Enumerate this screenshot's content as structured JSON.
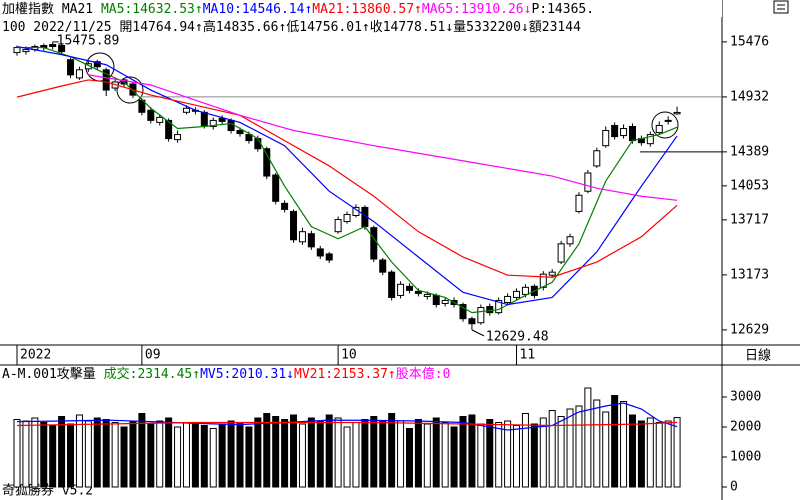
{
  "header": {
    "line1": [
      {
        "text": "加權指數 MA21 ",
        "color": "#000000"
      },
      {
        "text": "MA5:14632.53↑",
        "color": "#008000"
      },
      {
        "text": "MA10:14546.14↑",
        "color": "#0000ff"
      },
      {
        "text": "MA21:13860.57↑",
        "color": "#ff0000"
      },
      {
        "text": "MA65:13910.26↓",
        "color": "#ff00ff"
      },
      {
        "text": "P:14365.",
        "color": "#000000"
      }
    ],
    "line2": [
      {
        "text": "100 2022/11/25 開14764.94↑高14835.66↑低14756.01↑收14778.51↓量5332200↓額23144",
        "color": "#000000"
      }
    ],
    "volume_line": [
      {
        "text": "A-M.001攻擊量 ",
        "color": "#000000"
      },
      {
        "text": "成交:2314.45↑",
        "color": "#008000"
      },
      {
        "text": "MV5:2010.31↓",
        "color": "#0000ff"
      },
      {
        "text": "MV21:2153.37↑",
        "color": "#ff0000"
      },
      {
        "text": "股本億:0",
        "color": "#ff00ff"
      }
    ],
    "period": "日線",
    "footer": "奇狐勝券 v5.2"
  },
  "chart_data": [
    {
      "type": "candlestick",
      "categories": [
        "2022",
        null,
        null,
        null,
        null,
        null,
        null,
        null,
        null,
        null,
        null,
        null,
        null,
        null,
        "09",
        null,
        null,
        null,
        null,
        null,
        null,
        null,
        null,
        null,
        null,
        null,
        null,
        null,
        null,
        null,
        null,
        null,
        null,
        null,
        null,
        null,
        "10",
        null,
        null,
        null,
        null,
        null,
        null,
        null,
        null,
        null,
        null,
        null,
        null,
        null,
        null,
        null,
        null,
        null,
        null,
        null,
        "11",
        null,
        null,
        null,
        null,
        null,
        null,
        null,
        null,
        null,
        null,
        null,
        null,
        null,
        null,
        null,
        null,
        null,
        null
      ],
      "open": [
        15370,
        15380,
        15400,
        15440,
        15450,
        15440,
        15300,
        15120,
        15210,
        15280,
        15200,
        15020,
        15100,
        15060,
        14900,
        14800,
        14680,
        14700,
        14510,
        14780,
        14800,
        14780,
        14640,
        14720,
        14700,
        14600,
        14560,
        14520,
        14420,
        14160,
        13880,
        13800,
        13500,
        13580,
        13430,
        13380,
        13600,
        13700,
        13760,
        13840,
        13640,
        13320,
        13200,
        12970,
        13060,
        13010,
        12960,
        12970,
        12890,
        12920,
        12880,
        12740,
        12700,
        12860,
        12800,
        12900,
        12950,
        12980,
        13060,
        13050,
        13170,
        13300,
        13480,
        13800,
        14000,
        14250,
        14450,
        14650,
        14550,
        14640,
        14520,
        14470,
        14580,
        14690,
        14764.94
      ],
      "high": [
        15440,
        15430,
        15450,
        15460,
        15475.89,
        15460,
        15320,
        15230,
        15290,
        15300,
        15220,
        15110,
        15120,
        15080,
        14920,
        14830,
        14760,
        14720,
        14600,
        14850,
        14830,
        14800,
        14730,
        14750,
        14720,
        14630,
        14590,
        14550,
        14440,
        14180,
        13910,
        13820,
        13640,
        13610,
        13460,
        13400,
        13750,
        13800,
        13870,
        13860,
        13660,
        13340,
        13220,
        13110,
        13090,
        13040,
        13010,
        12990,
        12950,
        12950,
        12900,
        12760,
        12880,
        12890,
        12950,
        12990,
        13040,
        13080,
        13080,
        13210,
        13230,
        13510,
        13580,
        13990,
        14210,
        14430,
        14640,
        14680,
        14660,
        14670,
        14550,
        14590,
        14690,
        14740,
        14835.66
      ],
      "low": [
        15340,
        15350,
        15380,
        15390,
        15400,
        15350,
        15120,
        15100,
        15180,
        15200,
        14940,
        14990,
        15030,
        14920,
        14750,
        14670,
        14650,
        14490,
        14480,
        14760,
        14760,
        14620,
        14610,
        14660,
        14570,
        14540,
        14470,
        14390,
        14120,
        13870,
        13790,
        13490,
        13470,
        13420,
        13330,
        13290,
        13580,
        13680,
        13740,
        13620,
        13300,
        13170,
        12920,
        12940,
        12990,
        12960,
        12930,
        12850,
        12860,
        12850,
        12710,
        12629.48,
        12680,
        12770,
        12780,
        12870,
        12920,
        12950,
        12940,
        13020,
        13140,
        13280,
        13450,
        13780,
        13980,
        14230,
        14430,
        14510,
        14520,
        14470,
        14450,
        14440,
        14560,
        14660,
        14756.01
      ],
      "close": [
        15420,
        15400,
        15430,
        15420,
        15430,
        15380,
        15150,
        15200,
        15260,
        15230,
        15000,
        15080,
        15060,
        14950,
        14780,
        14700,
        14730,
        14520,
        14560,
        14820,
        14790,
        14650,
        14700,
        14690,
        14600,
        14570,
        14500,
        14420,
        14150,
        13900,
        13820,
        13520,
        13600,
        13450,
        13360,
        13320,
        13720,
        13770,
        13840,
        13650,
        13330,
        13200,
        12950,
        13080,
        13020,
        12990,
        12980,
        12880,
        12920,
        12880,
        12740,
        12690,
        12850,
        12800,
        12920,
        12960,
        13010,
        13050,
        12970,
        13180,
        13200,
        13480,
        13550,
        13960,
        14180,
        14400,
        14600,
        14540,
        14620,
        14500,
        14480,
        14560,
        14650,
        14700,
        14778.51
      ],
      "up_color": "#ffffff",
      "down_color": "#000000",
      "series": [
        {
          "name": "MA5",
          "color": "#008000",
          "x": [
            0,
            3,
            6,
            9,
            12,
            15,
            18,
            21,
            24,
            27,
            30,
            33,
            36,
            39,
            42,
            45,
            48,
            51,
            54,
            57,
            60,
            63,
            66,
            69,
            72,
            74
          ],
          "values": [
            15420,
            15420,
            15330,
            15200,
            15080,
            14820,
            14620,
            14640,
            14670,
            14520,
            14050,
            13650,
            13530,
            13650,
            13300,
            13020,
            12950,
            12800,
            12830,
            12970,
            13100,
            13480,
            14100,
            14500,
            14560,
            14632.53
          ]
        },
        {
          "name": "MA10",
          "color": "#0000ff",
          "x": [
            0,
            5,
            10,
            15,
            20,
            25,
            30,
            35,
            40,
            45,
            50,
            55,
            60,
            65,
            70,
            74
          ],
          "values": [
            15430,
            15350,
            15250,
            15000,
            14800,
            14680,
            14450,
            14000,
            13700,
            13350,
            13000,
            12880,
            12950,
            13400,
            14050,
            14546.14
          ]
        },
        {
          "name": "MA21",
          "color": "#ff0000",
          "x": [
            0,
            5,
            8,
            10,
            15,
            20,
            25,
            30,
            35,
            40,
            45,
            50,
            55,
            60,
            65,
            70,
            74
          ],
          "values": [
            14930,
            15040,
            15100,
            15080,
            14950,
            14850,
            14750,
            14500,
            14250,
            13950,
            13600,
            13350,
            13170,
            13150,
            13300,
            13550,
            13860.57
          ]
        },
        {
          "name": "MA65",
          "color": "#ff00ff",
          "x": [
            8,
            15,
            20,
            25,
            31,
            40,
            52,
            60,
            65,
            70,
            74
          ],
          "values": [
            15150,
            15050,
            14900,
            14750,
            14600,
            14450,
            14270,
            14150,
            14030,
            13950,
            13910.26
          ]
        }
      ],
      "ylim": [
        12480,
        15890
      ],
      "yticks": [
        15476,
        14932,
        14389,
        14053,
        13717,
        13173,
        12629
      ]
    },
    {
      "type": "bar",
      "values": [
        2250,
        2200,
        2300,
        2150,
        2050,
        2350,
        2100,
        2400,
        2200,
        2300,
        2250,
        2150,
        2000,
        2200,
        2450,
        2100,
        2200,
        2300,
        2000,
        2150,
        2100,
        2050,
        1950,
        2100,
        2200,
        2150,
        2000,
        2300,
        2450,
        2350,
        2250,
        2400,
        2100,
        2300,
        2200,
        2400,
        2300,
        2000,
        2150,
        2250,
        2350,
        2200,
        2450,
        2200,
        1950,
        2250,
        2100,
        2300,
        2150,
        2000,
        2350,
        2400,
        2100,
        2250,
        2150,
        2200,
        2050,
        2450,
        2100,
        2300,
        2550,
        2350,
        2600,
        2700,
        3300,
        2900,
        2500,
        3050,
        2850,
        2400,
        2200,
        2300,
        2150,
        2200,
        2314.45
      ],
      "series": [
        {
          "name": "MV5",
          "color": "#0000ff",
          "x": [
            0,
            5,
            10,
            15,
            20,
            25,
            30,
            35,
            40,
            45,
            50,
            55,
            60,
            63,
            66,
            68,
            70,
            72,
            74
          ],
          "values": [
            2180,
            2200,
            2230,
            2180,
            2120,
            2080,
            2150,
            2230,
            2220,
            2200,
            2150,
            1900,
            2050,
            2500,
            2700,
            2800,
            2600,
            2200,
            2010.31
          ]
        },
        {
          "name": "MV21",
          "color": "#ff0000",
          "x": [
            0,
            10,
            20,
            30,
            40,
            50,
            60,
            70,
            74
          ],
          "values": [
            2050,
            2100,
            2150,
            2150,
            2150,
            2100,
            2050,
            2100,
            2153.37
          ]
        }
      ],
      "ylim": [
        0,
        3600
      ],
      "yticks": [
        3000,
        2000,
        1000,
        0
      ]
    }
  ]
}
